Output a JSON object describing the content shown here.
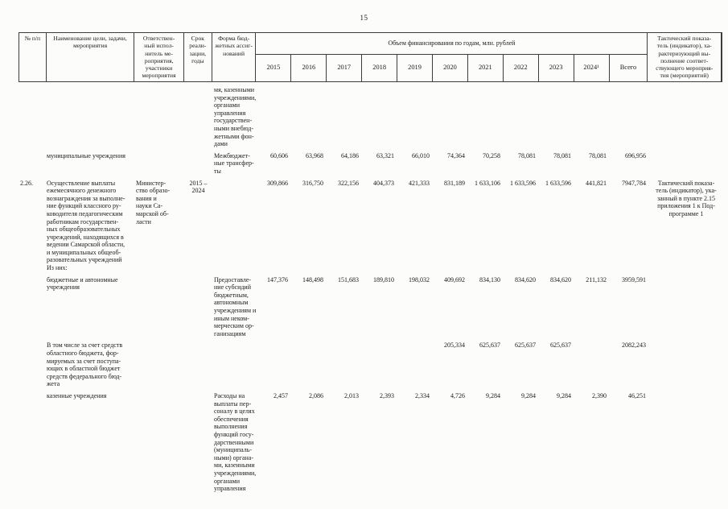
{
  "page": {
    "number": "15"
  },
  "table": {
    "header": {
      "num": "№ п/п",
      "name": "Наименование цели, задачи,\nмероприятия",
      "resp": "Ответствен-\nный испол-\nнитель ме-\nроприятия,\nучастники\nмероприятия",
      "term": "Срок\nреали-\nзации,\nгоды",
      "form": "Форма бюд-\nжетных ассиг-\nнований",
      "finance_group": "Объем финансирования по годам, млн. рублей",
      "years": [
        "2015",
        "2016",
        "2017",
        "2018",
        "2019",
        "2020",
        "2021",
        "2022",
        "2023",
        "2024¹",
        "Всего"
      ],
      "indicator": "Тактический показа-\nтель (индикатор), ха-\nрактеризующий вы-\nполнение соответ-\nствующего мероприя-\nтия (мероприятий)"
    },
    "rows": [
      {
        "num": "",
        "name": "",
        "resp": "",
        "term": "",
        "form": "мя, казенными\nучреждениями,\nорганами\nуправления\nгосударствен-\nными внебюд-\nжетными фон-\nдами",
        "values": [
          "",
          "",
          "",
          "",
          "",
          "",
          "",
          "",
          "",
          ""
        ],
        "total": "",
        "indicator": ""
      },
      {
        "num": "",
        "name": "муниципальные учреждения",
        "resp": "",
        "term": "",
        "form": "Межбюджет-\nные трансфер-\nты",
        "values": [
          "60,606",
          "63,968",
          "64,186",
          "63,321",
          "66,010",
          "74,364",
          "70,258",
          "78,081",
          "78,081",
          "78,081"
        ],
        "total": "696,956",
        "indicator": ""
      },
      {
        "num": "2.26.",
        "name": "Осуществление выплаты\nежемесячного денежного\nвознаграждения за выполне-\nние функций классного ру-\nководителя педагогическим\nработникам государствен-\nных общеобразовательных\nучреждений, находящихся в\nведении Самарской области,\nи муниципальных общеоб-\nразовательных учреждений\nИз них:",
        "resp": "Министер-\nство образо-\nвания и\nнауки Са-\nмарской об-\nласти",
        "term": "2015 –\n2024",
        "form": "",
        "values": [
          "309,866",
          "316,750",
          "322,156",
          "404,373",
          "421,333",
          "831,189",
          "1 633,106",
          "1 633,596",
          "1 633,596",
          "441,821"
        ],
        "total": "7947,784",
        "indicator": "Тактический показа-\nтель (индикатор), ука-\nзанный в пункте 2.15\nприложения 1 к Под-\nпрограмме 1"
      },
      {
        "num": "",
        "name": "бюджетные и автономные\nучреждения",
        "resp": "",
        "term": "",
        "form": "Предоставле-\nние субсидий\nбюджетным,\nавтономным\nучреждениям и\nиным неком-\nмерческим ор-\nганизациям",
        "values": [
          "147,376",
          "148,498",
          "151,683",
          "189,810",
          "198,032",
          "409,692",
          "834,130",
          "834,620",
          "834,620",
          "211,132"
        ],
        "total": "3959,591",
        "indicator": ""
      },
      {
        "num": "",
        "name": "В том числе за счет средств\nобластного бюджета, фор-\nмируемых за счет поступа-\nющих в областной бюджет\nсредств федерального бюд-\nжета",
        "resp": "",
        "term": "",
        "form": "",
        "values": [
          "",
          "",
          "",
          "",
          "",
          "205,334",
          "625,637",
          "625,637",
          "625,637",
          ""
        ],
        "total": "2082,243",
        "indicator": ""
      },
      {
        "num": "",
        "name": "казенные учреждения",
        "resp": "",
        "term": "",
        "form": "Расходы на\nвыплаты пер-\nсоналу в целях\nобеспечения\nвыполнения\nфункций госу-\nдарственными\n(муниципаль-\nными) органа-\nми, казенными\nучреждениями,\nорганами\nуправления",
        "values": [
          "2,457",
          "2,086",
          "2,013",
          "2,393",
          "2,334",
          "4,726",
          "9,284",
          "9,284",
          "9,284",
          "2,390"
        ],
        "total": "46,251",
        "indicator": ""
      }
    ]
  }
}
